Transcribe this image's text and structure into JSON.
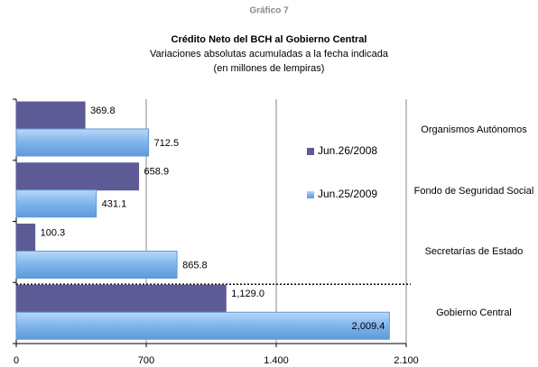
{
  "chart_data": {
    "type": "hbar",
    "figure_label": "Gráfico 7",
    "title": "Crédito Neto del BCH al Gobierno Central",
    "subtitle": [
      "Variaciones absolutas acumuladas a la fecha indicada",
      "(en millones de lempiras)"
    ],
    "categories": [
      "Organismos Autónomos",
      "Fondo de Seguridad Social",
      "Secretarías de Estado",
      "Gobierno Central"
    ],
    "series": [
      {
        "name": "Jun.26/2008",
        "color": "#5d5b96",
        "values": [
          369.8,
          658.9,
          100.3,
          1129.0
        ],
        "value_labels": [
          "369.8",
          "658.9",
          "100.3",
          "1,129.0"
        ]
      },
      {
        "name": "Jun.25/2009",
        "color": "#7eb4ec",
        "values": [
          712.5,
          431.1,
          865.8,
          2009.4
        ],
        "value_labels": [
          "712.5",
          "431.1",
          "865.8",
          "2,009.4"
        ]
      }
    ],
    "xlim": [
      0,
      2100
    ],
    "xticks": [
      0,
      700,
      {
        "value": 1400,
        "label": "1.400"
      },
      {
        "value": 2100,
        "label": "2.100"
      }
    ],
    "grid": true
  }
}
